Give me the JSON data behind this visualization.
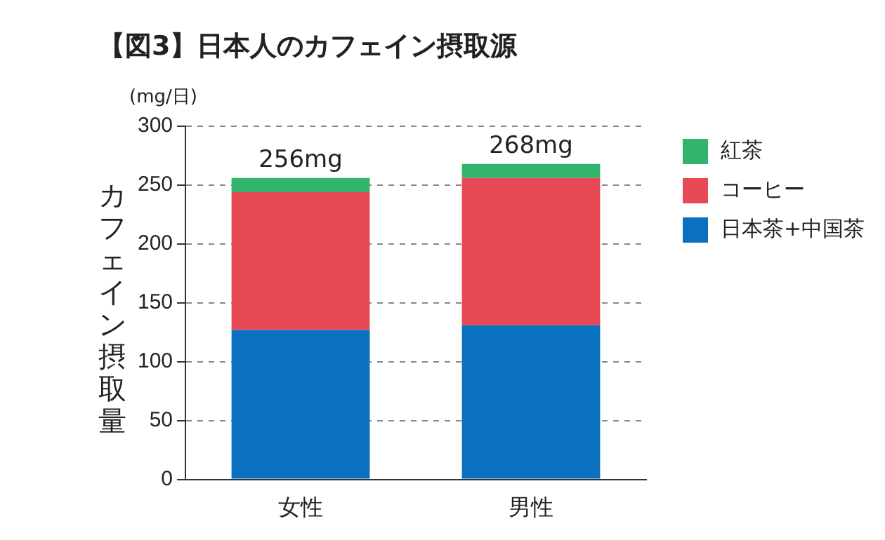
{
  "chart_data": {
    "type": "bar",
    "title": "【図3】日本人のカフェイン摂取源",
    "ylabel": "カフェイン摂取量",
    "annotations": [
      "(mg/日)"
    ],
    "categories": [
      "女性",
      "男性"
    ],
    "stacked": true,
    "series": [
      {
        "name": "日本茶+中国茶",
        "color": "#0a70c0",
        "values": [
          127,
          131
        ]
      },
      {
        "name": "コーヒー",
        "color": "#e84a55",
        "values": [
          117,
          125
        ]
      },
      {
        "name": "紅茶",
        "color": "#32b46c",
        "values": [
          12,
          12
        ]
      }
    ],
    "totals": [
      "256mg",
      "268mg"
    ],
    "ylim": [
      0,
      300
    ],
    "yticks": [
      0,
      50,
      100,
      150,
      200,
      250,
      300
    ],
    "grid": "y",
    "legend": "top right"
  }
}
